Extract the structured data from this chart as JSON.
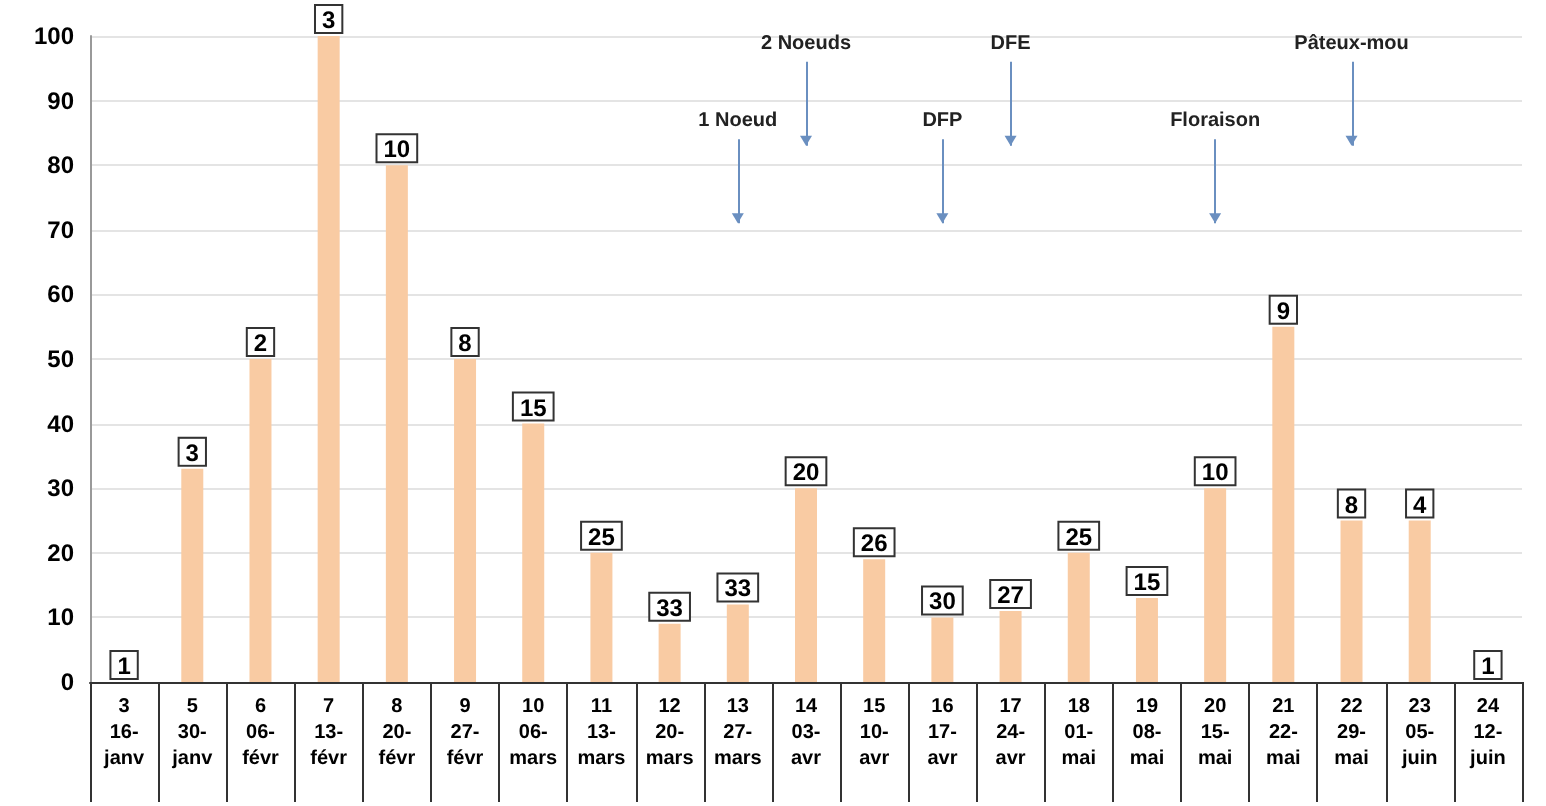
{
  "chart_data": {
    "type": "bar",
    "categories": [
      "3\n16-\njanv",
      "5\n30-\njanv",
      "6\n06-\nfévr",
      "7\n13-\nfévr",
      "8\n20-\nfévr",
      "9\n27-\nfévr",
      "10\n06-\nmars",
      "11\n13-\nmars",
      "12\n20-\nmars",
      "13\n27-\nmars",
      "14\n03-\navr",
      "15\n10-\navr",
      "16\n17-\navr",
      "17\n24-\navr",
      "18\n01-\nmai",
      "19\n08-\nmai",
      "20\n15-\nmai",
      "21\n22-\nmai",
      "22\n29-\nmai",
      "23\n05-\njuin",
      "24\n12-\njuin"
    ],
    "values": [
      0,
      33,
      50,
      100,
      80,
      50,
      40,
      20,
      9,
      12,
      30,
      19,
      10,
      11,
      20,
      13,
      30,
      55,
      25,
      25,
      0
    ],
    "color": "#f9cba3",
    "ylim": [
      0,
      100
    ],
    "yticks": [
      0,
      10,
      20,
      30,
      40,
      50,
      60,
      70,
      80,
      90,
      100
    ],
    "grid": "y",
    "ref_lines": [
      {
        "axis": "x",
        "value": "13\n27-\nmars",
        "label": "1 Noeud",
        "color": "#6a8fc0"
      },
      {
        "axis": "x",
        "value": "14\n03-\navr",
        "label": "2 Noeuds",
        "color": "#6a8fc0"
      },
      {
        "axis": "x",
        "value": "16\n17-\navr",
        "label": "DFP",
        "color": "#6a8fc0"
      },
      {
        "axis": "x",
        "value": "17\n24-\navr",
        "label": "DFE",
        "color": "#6a8fc0"
      },
      {
        "axis": "x",
        "value": "20\n15-\nmai",
        "label": "Floraison",
        "color": "#6a8fc0"
      },
      {
        "axis": "x",
        "value": "22\n29-\nmai",
        "label": "Pâteux-mou",
        "color": "#6a8fc0"
      }
    ],
    "annotations": [
      {
        "text": "1",
        "x": "3\n16-\njanv",
        "y": 0
      },
      {
        "text": "3",
        "x": "5\n30-\njanv",
        "y": 33
      },
      {
        "text": "2",
        "x": "6\n06-\nfévr",
        "y": 50
      },
      {
        "text": "3",
        "x": "7\n13-\nfévr",
        "y": 100
      },
      {
        "text": "10",
        "x": "8\n20-\nfévr",
        "y": 80
      },
      {
        "text": "8",
        "x": "9\n27-\nfévr",
        "y": 50
      },
      {
        "text": "15",
        "x": "10\n06-\nmars",
        "y": 40
      },
      {
        "text": "25",
        "x": "11\n13-\nmars",
        "y": 20
      },
      {
        "text": "33",
        "x": "12\n20-\nmars",
        "y": 9
      },
      {
        "text": "33",
        "x": "13\n27-\nmars",
        "y": 12
      },
      {
        "text": "20",
        "x": "14\n03-\navr",
        "y": 30
      },
      {
        "text": "26",
        "x": "15\n10-\navr",
        "y": 19
      },
      {
        "text": "30",
        "x": "16\n17-\navr",
        "y": 10
      },
      {
        "text": "27",
        "x": "17\n24-\navr",
        "y": 11
      },
      {
        "text": "25",
        "x": "18\n01-\nmai",
        "y": 20
      },
      {
        "text": "15",
        "x": "19\n08-\nmai",
        "y": 13
      },
      {
        "text": "10",
        "x": "20\n15-\nmai",
        "y": 30
      },
      {
        "text": "9",
        "x": "21\n22-\nmai",
        "y": 55
      },
      {
        "text": "8",
        "x": "22\n29-\nmai",
        "y": 25
      },
      {
        "text": "4",
        "x": "23\n05-\njuin",
        "y": 25
      },
      {
        "text": "1",
        "x": "24\n12-\njuin",
        "y": 0
      }
    ]
  }
}
